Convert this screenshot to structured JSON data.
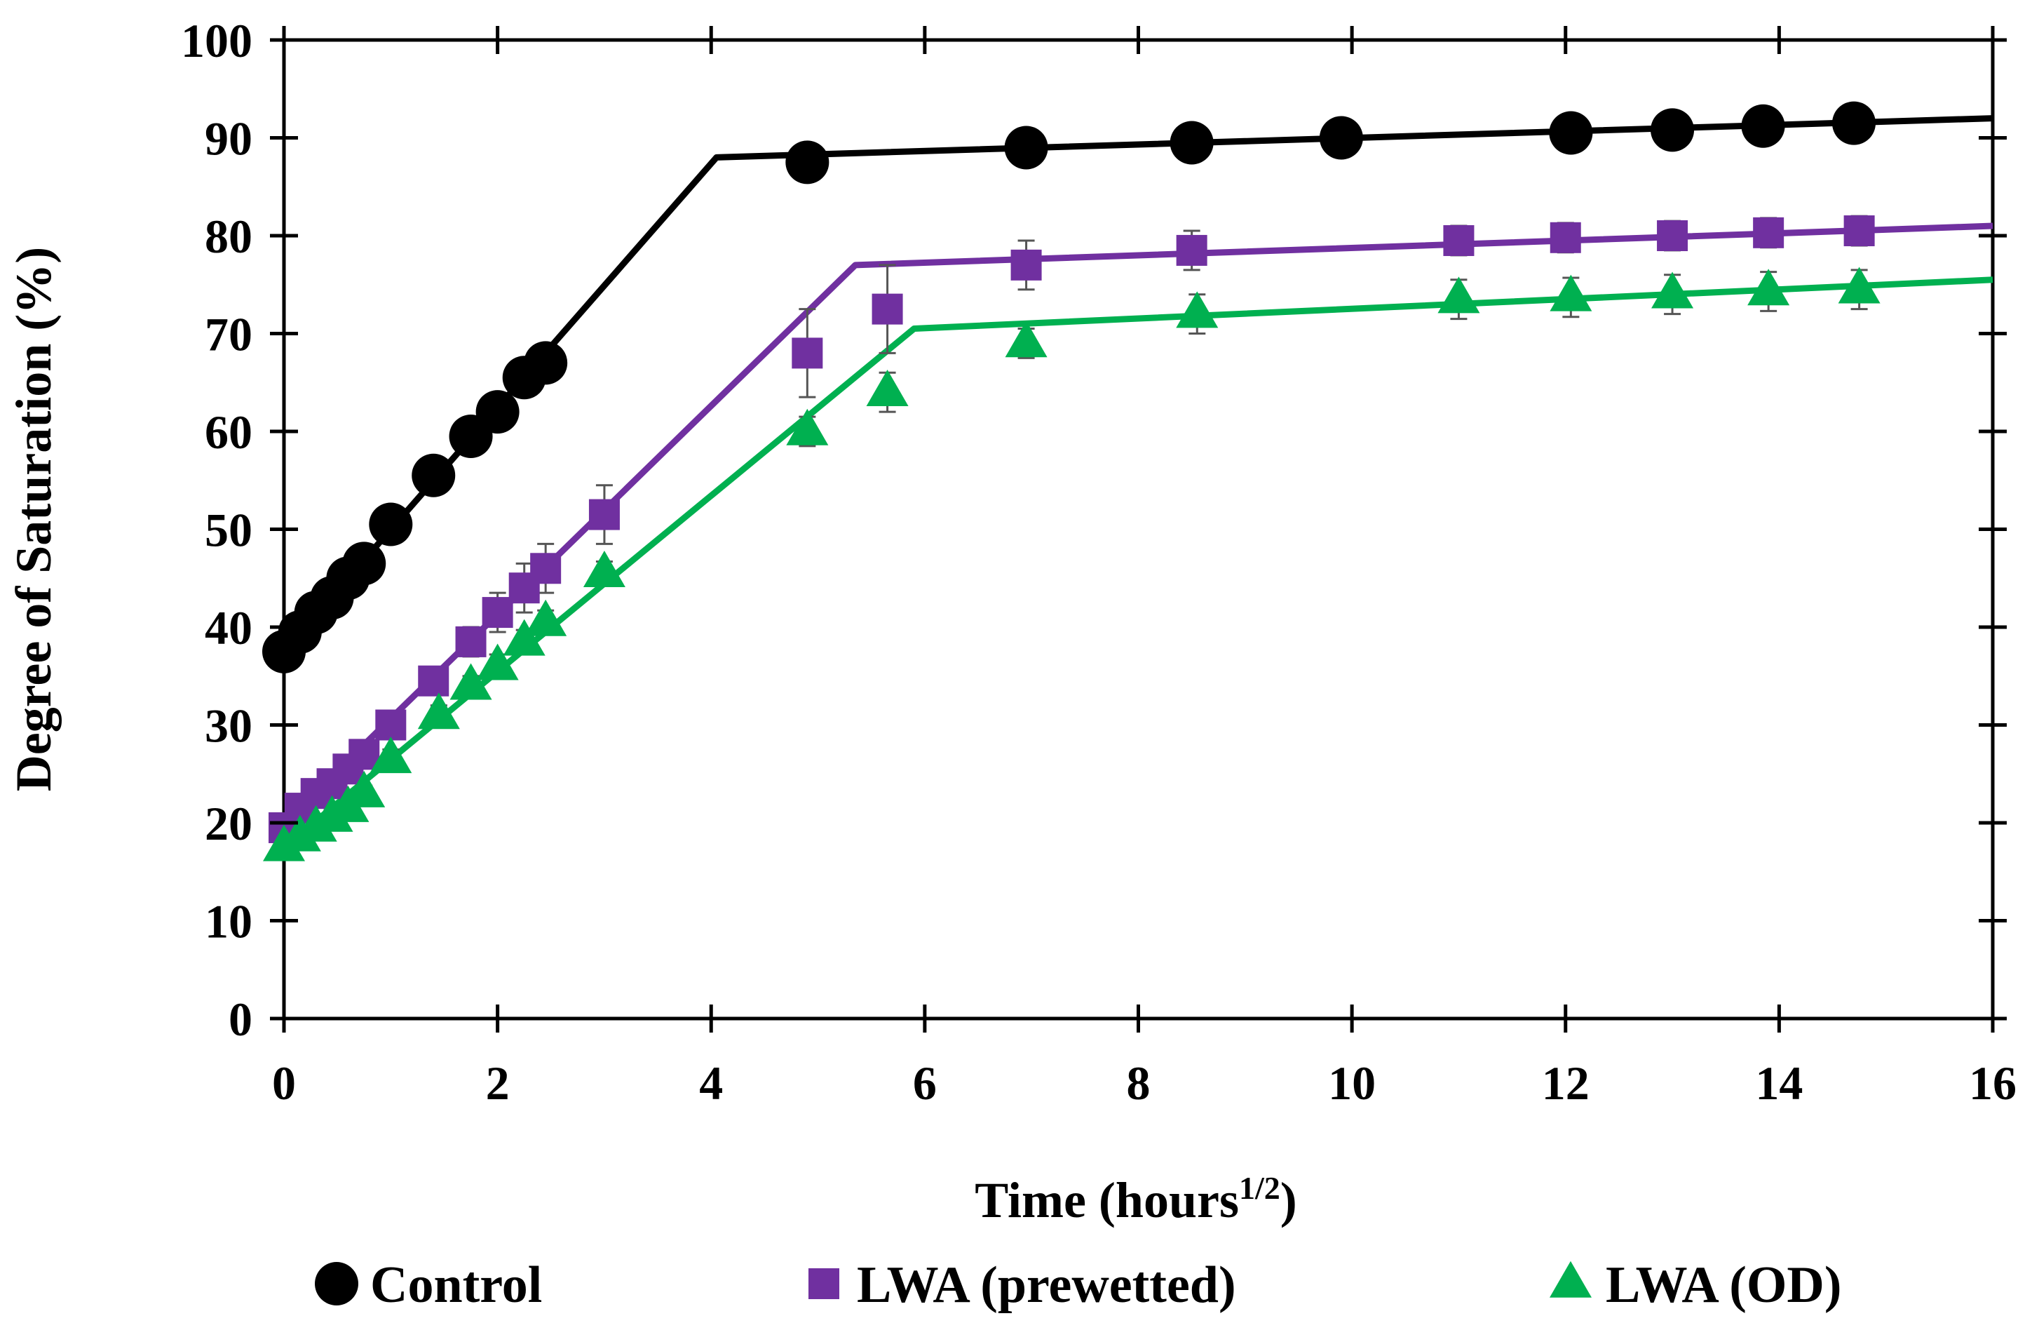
{
  "chart_data": {
    "type": "line",
    "title": "",
    "xlabel": "Time (hours",
    "xlabel_superscript": "1/2",
    "xlabel_close": ")",
    "ylabel": "Degree of Saturation (%)",
    "xlim": [
      0,
      16
    ],
    "ylim": [
      0,
      100
    ],
    "xticks": [
      0,
      2,
      4,
      6,
      8,
      10,
      12,
      14,
      16
    ],
    "yticks": [
      0,
      10,
      20,
      30,
      40,
      50,
      60,
      70,
      80,
      90,
      100
    ],
    "grid": false,
    "legend_position": "bottom",
    "series": [
      {
        "name": "Control",
        "marker": "circle",
        "color": "#000000",
        "x": [
          0,
          0.15,
          0.3,
          0.45,
          0.6,
          0.75,
          1.0,
          1.4,
          1.75,
          2.0,
          2.25,
          2.45,
          4.9,
          6.95,
          8.5,
          9.9,
          12.05,
          13.0,
          13.85,
          14.7
        ],
        "y": [
          37.5,
          39.5,
          41.5,
          43,
          45,
          46.5,
          50.5,
          55.5,
          59.5,
          62,
          65.5,
          67,
          87.5,
          89,
          89.5,
          90,
          90.5,
          90.8,
          91.2,
          91.5
        ],
        "fit_x": [
          0,
          4.05,
          16
        ],
        "fit_y": [
          37.5,
          88,
          92
        ]
      },
      {
        "name": "LWA (prewetted)",
        "marker": "square",
        "color": "#7030A0",
        "x": [
          0,
          0.15,
          0.3,
          0.45,
          0.6,
          0.75,
          1.0,
          1.4,
          1.75,
          2.0,
          2.25,
          2.45,
          3.0,
          4.9,
          5.65,
          6.95,
          8.5,
          11.0,
          12.0,
          13.0,
          13.9,
          14.75
        ],
        "y": [
          19.5,
          21.5,
          23,
          24,
          25.5,
          27,
          30,
          34.5,
          38.5,
          41.5,
          44,
          46,
          51.5,
          68,
          72.5,
          77,
          78.5,
          79.5,
          79.8,
          80,
          80.3,
          80.5
        ],
        "err": [
          0.8,
          0.8,
          0.8,
          0.8,
          0.8,
          0.8,
          1.0,
          1.2,
          1.5,
          2.0,
          2.5,
          2.5,
          3.0,
          4.5,
          4.5,
          2.5,
          2.0,
          1.5,
          1.5,
          1.5,
          1.5,
          1.5
        ],
        "fit_x": [
          0,
          5.35,
          16
        ],
        "fit_y": [
          20,
          77,
          81
        ]
      },
      {
        "name": "LWA (OD)",
        "marker": "triangle",
        "color": "#00B050",
        "x": [
          0,
          0.15,
          0.3,
          0.45,
          0.6,
          0.75,
          1.0,
          1.45,
          1.75,
          2.0,
          2.25,
          2.45,
          3.0,
          4.9,
          5.65,
          6.95,
          8.55,
          11.0,
          12.05,
          13.0,
          13.9,
          14.75
        ],
        "y": [
          17.5,
          18.5,
          19.5,
          20.5,
          21.5,
          23,
          26.5,
          31,
          34,
          36,
          38.5,
          40.5,
          45.5,
          60,
          64,
          69,
          72,
          73.5,
          73.7,
          74,
          74.3,
          74.5
        ],
        "err": [
          0.8,
          0.8,
          0.8,
          0.8,
          0.8,
          0.8,
          1.0,
          1.0,
          1.0,
          1.2,
          1.2,
          1.2,
          1.2,
          1.5,
          2.0,
          1.5,
          2.0,
          2.0,
          2.0,
          2.0,
          2.0,
          2.0
        ],
        "fit_x": [
          0,
          5.9,
          16
        ],
        "fit_y": [
          17.5,
          70.5,
          75.5
        ]
      }
    ]
  }
}
